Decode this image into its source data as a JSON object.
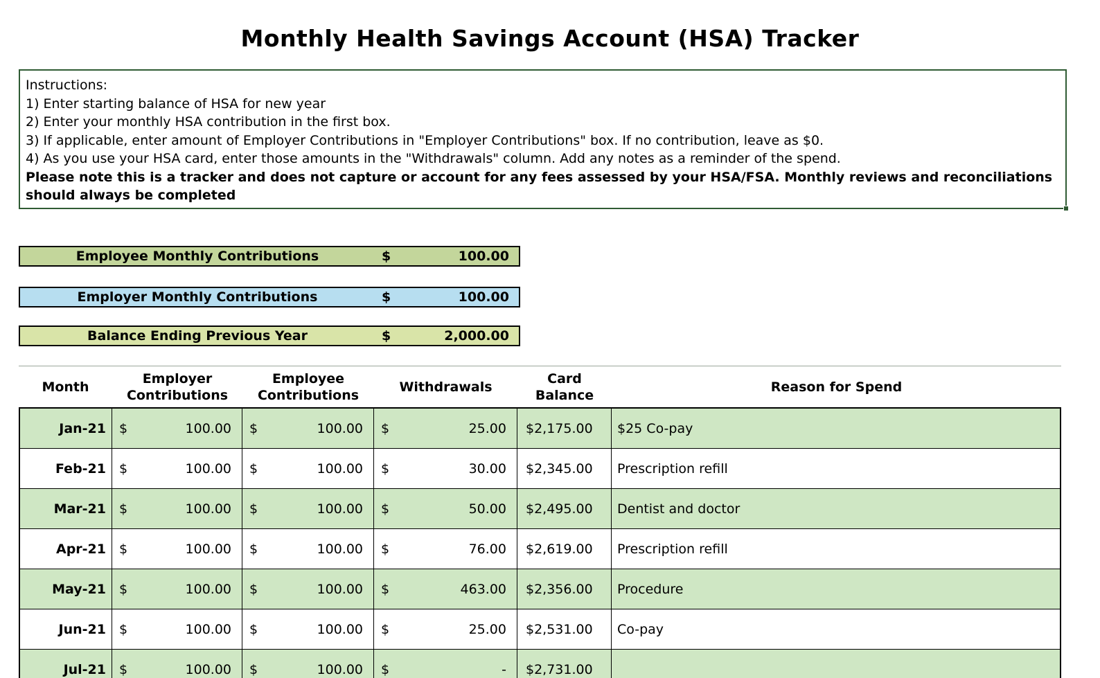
{
  "title": "Monthly Health Savings Account (HSA) Tracker",
  "instructions": {
    "lines": [
      "Instructions:",
      "1) Enter starting balance of HSA for new year",
      "2) Enter your monthly HSA contribution in the first box.",
      "3) If applicable, enter amount of Employer Contributions in \"Employer Contributions\" box. If no contribution, leave as $0.",
      "4) As you use your HSA card, enter those amounts in the \"Withdrawals\" column. Add any notes as a reminder of the spend."
    ],
    "note": "Please note this is a tracker and does not capture or account for any fees assessed by your HSA/FSA. Monthly reviews and reconciliations should always be completed"
  },
  "summary": [
    {
      "label": "Employee Monthly Contributions",
      "currency": "$",
      "value": "100.00",
      "color": "#c3d69b"
    },
    {
      "label": "Employer Monthly Contributions",
      "currency": "$",
      "value": "100.00",
      "color": "#b7def0"
    },
    {
      "label": "Balance Ending Previous Year",
      "currency": "$",
      "value": "2,000.00",
      "color": "#d9e4a8"
    }
  ],
  "table": {
    "headers": [
      "Month",
      "Employer Contributions",
      "Employee Contributions",
      "Withdrawals",
      "Card Balance",
      "Reason for Spend"
    ],
    "currency_symbol": "$",
    "rows": [
      {
        "month": "Jan-21",
        "employer": "100.00",
        "employee": "100.00",
        "withdrawals": "25.00",
        "card_balance": "$2,175.00",
        "reason": "$25 Co-pay"
      },
      {
        "month": "Feb-21",
        "employer": "100.00",
        "employee": "100.00",
        "withdrawals": "30.00",
        "card_balance": "$2,345.00",
        "reason": "Prescription refill"
      },
      {
        "month": "Mar-21",
        "employer": "100.00",
        "employee": "100.00",
        "withdrawals": "50.00",
        "card_balance": "$2,495.00",
        "reason": "Dentist and doctor"
      },
      {
        "month": "Apr-21",
        "employer": "100.00",
        "employee": "100.00",
        "withdrawals": "76.00",
        "card_balance": "$2,619.00",
        "reason": "Prescription refill"
      },
      {
        "month": "May-21",
        "employer": "100.00",
        "employee": "100.00",
        "withdrawals": "463.00",
        "card_balance": "$2,356.00",
        "reason": "Procedure"
      },
      {
        "month": "Jun-21",
        "employer": "100.00",
        "employee": "100.00",
        "withdrawals": "25.00",
        "card_balance": "$2,531.00",
        "reason": "Co-pay"
      },
      {
        "month": "Jul-21",
        "employer": "100.00",
        "employee": "100.00",
        "withdrawals": "-",
        "card_balance": "$2,731.00",
        "reason": ""
      }
    ]
  },
  "colors": {
    "row_green": "#cfe7c4",
    "instructions_border": "#2f5b33",
    "grid_line": "#000000"
  }
}
